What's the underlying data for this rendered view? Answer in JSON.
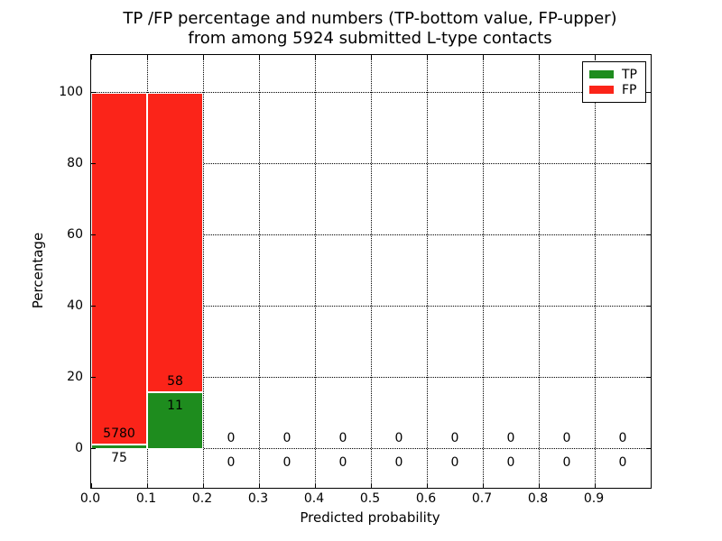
{
  "colors": {
    "tp": "#1e8c1e",
    "fp": "#fb2419",
    "background": "#ffffff",
    "grid": "#000000",
    "text": "#000000"
  },
  "chart_data": {
    "type": "bar",
    "stacked": true,
    "title_line1": "TP /FP percentage and numbers (TP-bottom value, FP-upper)",
    "title_line2": "from among 5924 submitted L-type contacts",
    "xlabel": "Predicted probability",
    "ylabel": "Percentage",
    "total_submitted_contacts": 5924,
    "xlim": [
      0,
      1.0
    ],
    "ylim": [
      -11,
      110.6
    ],
    "grid": true,
    "xtick_values": [
      0.0,
      0.1,
      0.2,
      0.3,
      0.4,
      0.5,
      0.6,
      0.7,
      0.8,
      0.9
    ],
    "xticks": [
      "0.0",
      "0.1",
      "0.2",
      "0.3",
      "0.4",
      "0.5",
      "0.6",
      "0.7",
      "0.8",
      "0.9"
    ],
    "ytick_values": [
      0,
      20,
      40,
      60,
      80,
      100
    ],
    "yticks": [
      "0",
      "20",
      "40",
      "60",
      "80",
      "100"
    ],
    "legend": {
      "position": "upper right",
      "items": [
        {
          "label": "TP",
          "color_key": "tp"
        },
        {
          "label": "FP",
          "color_key": "fp"
        }
      ]
    },
    "bins": [
      {
        "x0": 0.0,
        "x1": 0.1,
        "tp_count": 75,
        "fp_count": 5780,
        "tp_pct": 1.28,
        "fp_pct": 98.72
      },
      {
        "x0": 0.1,
        "x1": 0.2,
        "tp_count": 11,
        "fp_count": 58,
        "tp_pct": 15.94,
        "fp_pct": 84.06
      },
      {
        "x0": 0.2,
        "x1": 0.3,
        "tp_count": 0,
        "fp_count": 0,
        "tp_pct": 0,
        "fp_pct": 0
      },
      {
        "x0": 0.3,
        "x1": 0.4,
        "tp_count": 0,
        "fp_count": 0,
        "tp_pct": 0,
        "fp_pct": 0
      },
      {
        "x0": 0.4,
        "x1": 0.5,
        "tp_count": 0,
        "fp_count": 0,
        "tp_pct": 0,
        "fp_pct": 0
      },
      {
        "x0": 0.5,
        "x1": 0.6,
        "tp_count": 0,
        "fp_count": 0,
        "tp_pct": 0,
        "fp_pct": 0
      },
      {
        "x0": 0.6,
        "x1": 0.7,
        "tp_count": 0,
        "fp_count": 0,
        "tp_pct": 0,
        "fp_pct": 0
      },
      {
        "x0": 0.7,
        "x1": 0.8,
        "tp_count": 0,
        "fp_count": 0,
        "tp_pct": 0,
        "fp_pct": 0
      },
      {
        "x0": 0.8,
        "x1": 0.9,
        "tp_count": 0,
        "fp_count": 0,
        "tp_pct": 0,
        "fp_pct": 0
      },
      {
        "x0": 0.9,
        "x1": 1.0,
        "tp_count": 0,
        "fp_count": 0,
        "tp_pct": 0,
        "fp_pct": 0
      }
    ]
  }
}
